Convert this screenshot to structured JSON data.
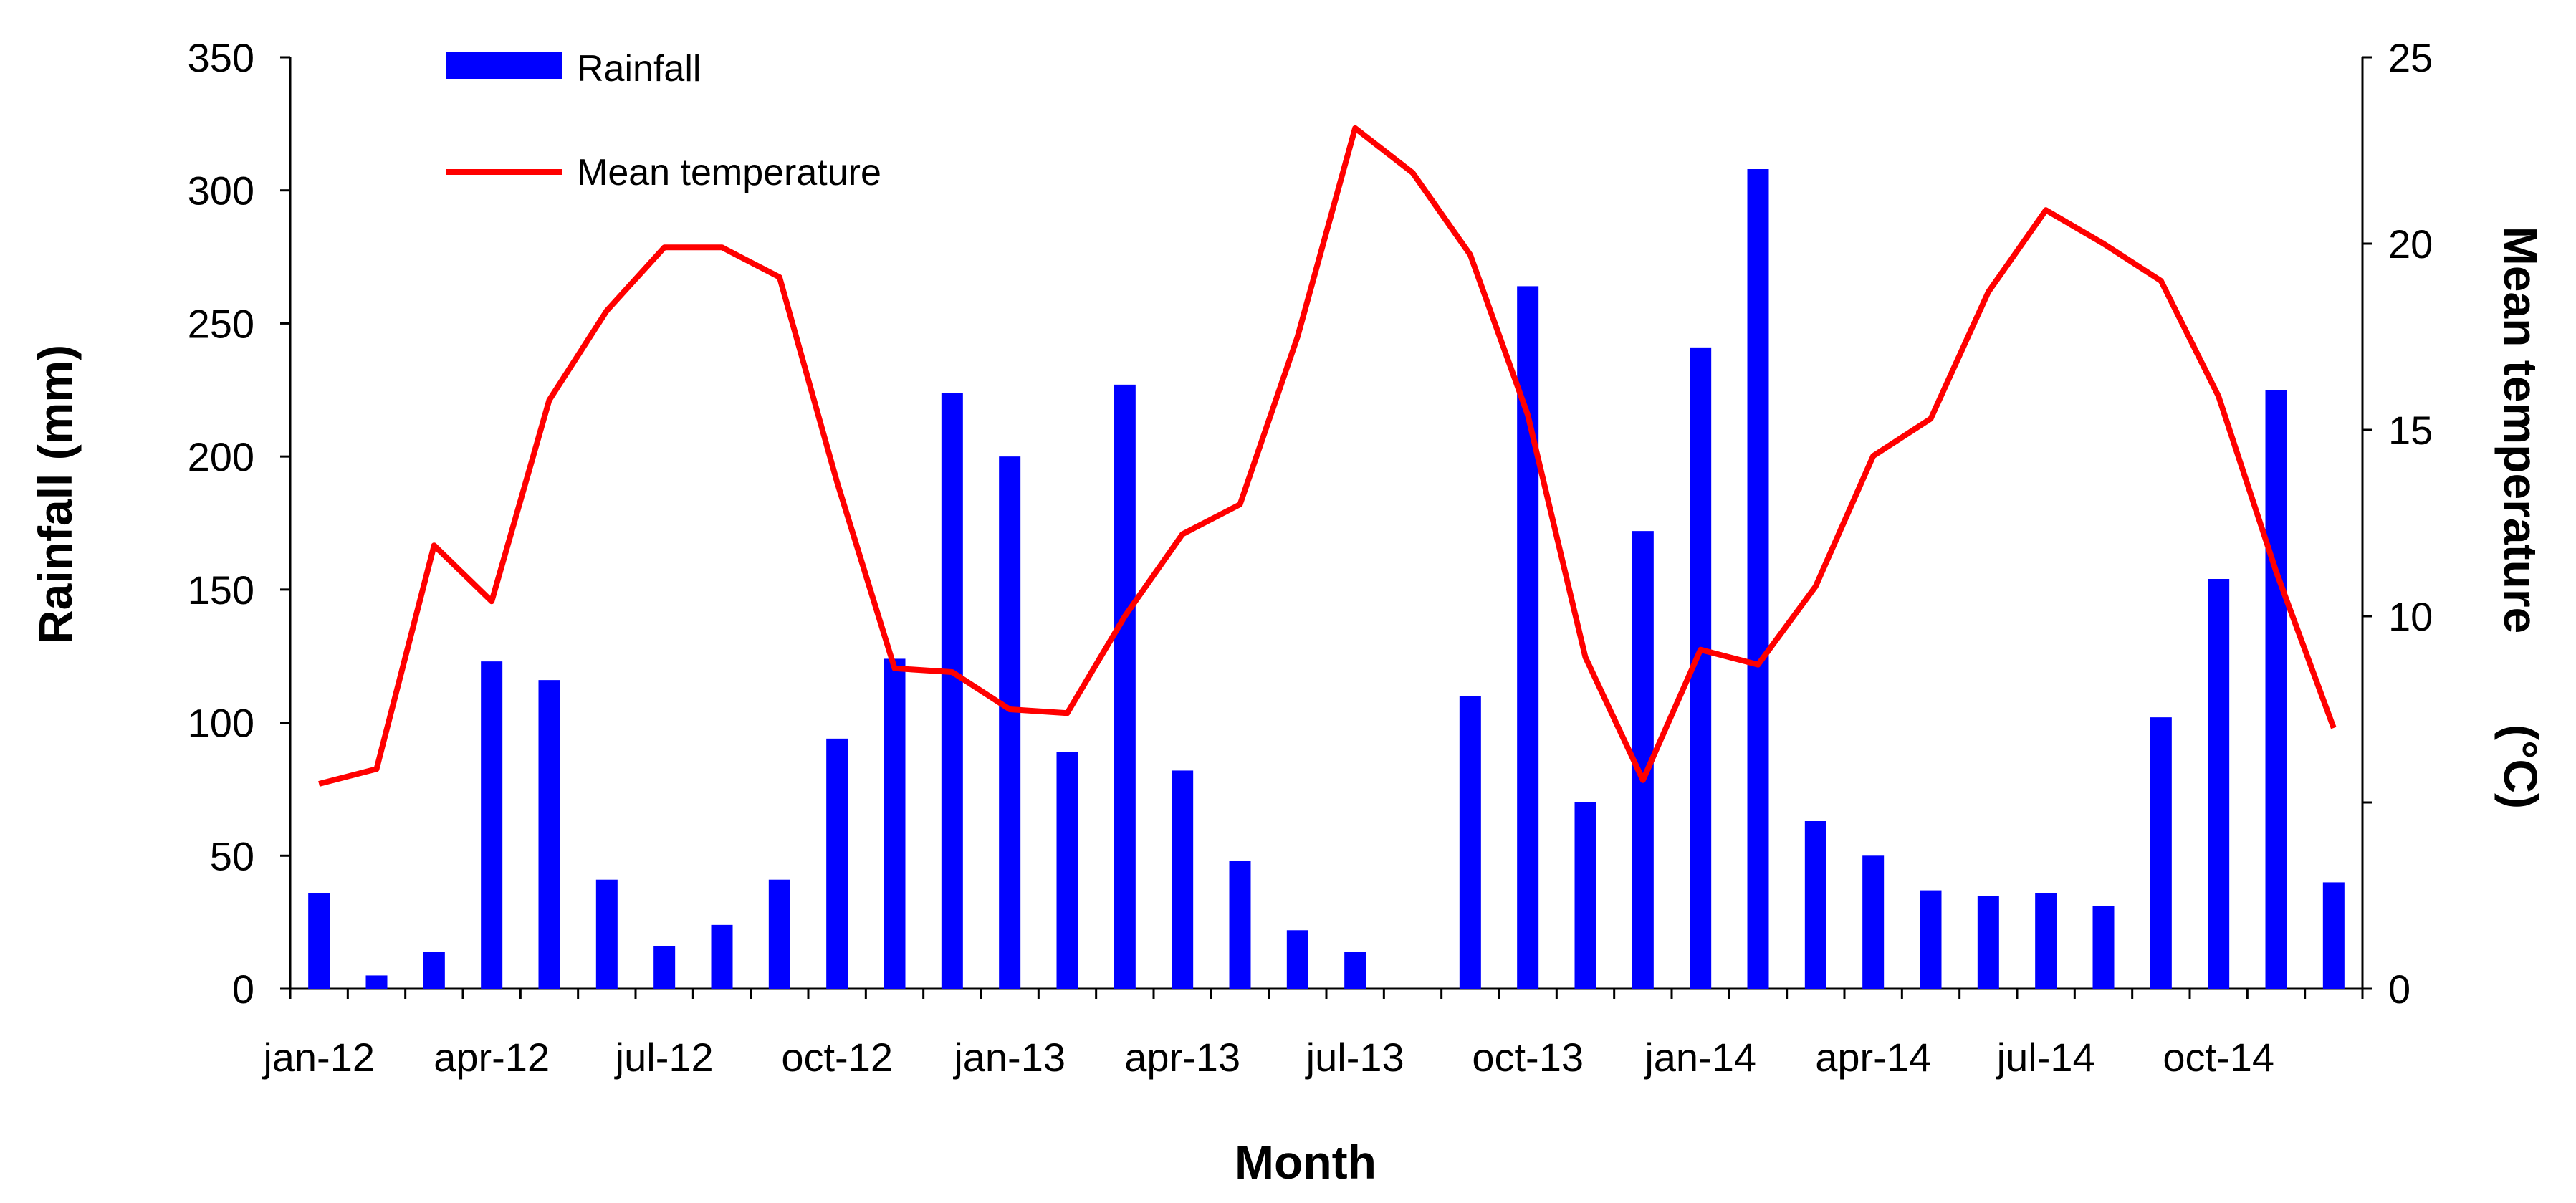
{
  "chart_data": {
    "type": "bar",
    "title": "",
    "xlabel": "Month",
    "ylabel": "Rainfall (mm)",
    "y2label_main": "Mean temperature",
    "y2label_unit": "(°C)",
    "ylim": [
      0,
      350
    ],
    "yticks": [
      0,
      50,
      100,
      150,
      200,
      250,
      300,
      350
    ],
    "y2lim": [
      0,
      25
    ],
    "y2ticks": [
      0,
      5,
      10,
      15,
      20,
      25
    ],
    "y2tick_labels": [
      "0",
      "",
      "10",
      "15",
      "20",
      "25"
    ],
    "categories": [
      "jan-12",
      "feb-12",
      "mar-12",
      "apr-12",
      "may-12",
      "jun-12",
      "jul-12",
      "aug-12",
      "sep-12",
      "oct-12",
      "nov-12",
      "dec-12",
      "jan-13",
      "feb-13",
      "mar-13",
      "apr-13",
      "may-13",
      "jun-13",
      "jul-13",
      "aug-13",
      "sep-13",
      "oct-13",
      "nov-13",
      "dec-13",
      "jan-14",
      "feb-14",
      "mar-14",
      "apr-14",
      "may-14",
      "jun-14",
      "jul-14",
      "aug-14",
      "sep-14",
      "oct-14",
      "nov-14",
      "dec-14"
    ],
    "x_tick_labels": [
      {
        "index": 0,
        "label": "jan-12"
      },
      {
        "index": 3,
        "label": "apr-12"
      },
      {
        "index": 6,
        "label": "jul-12"
      },
      {
        "index": 9,
        "label": "oct-12"
      },
      {
        "index": 12,
        "label": "jan-13"
      },
      {
        "index": 15,
        "label": "apr-13"
      },
      {
        "index": 18,
        "label": "jul-13"
      },
      {
        "index": 21,
        "label": "oct-13"
      },
      {
        "index": 24,
        "label": "jan-14"
      },
      {
        "index": 27,
        "label": "apr-14"
      },
      {
        "index": 30,
        "label": "jul-14"
      },
      {
        "index": 33,
        "label": "oct-14"
      }
    ],
    "series": [
      {
        "name": "Rainfall",
        "type": "bar",
        "axis": "left",
        "color": "#0000ff",
        "values": [
          36,
          5,
          14,
          123,
          116,
          41,
          16,
          24,
          41,
          94,
          124,
          224,
          200,
          89,
          227,
          82,
          48,
          22,
          14,
          0,
          110,
          264,
          70,
          172,
          241,
          308,
          63,
          50,
          37,
          35,
          36,
          31,
          102,
          154,
          225,
          40
        ]
      },
      {
        "name": "Mean temperature",
        "type": "line",
        "axis": "right",
        "color": "#ff0000",
        "values": [
          5.5,
          5.9,
          11.9,
          10.4,
          15.8,
          18.2,
          19.9,
          19.9,
          19.1,
          13.6,
          8.6,
          8.5,
          7.5,
          7.4,
          10.0,
          12.2,
          13.0,
          17.5,
          23.1,
          21.9,
          19.7,
          15.4,
          8.9,
          5.6,
          9.1,
          8.7,
          10.8,
          14.3,
          15.3,
          18.7,
          20.9,
          20.0,
          19.0,
          15.9,
          11.2,
          7.0
        ]
      }
    ],
    "legend_position": "top-left"
  }
}
